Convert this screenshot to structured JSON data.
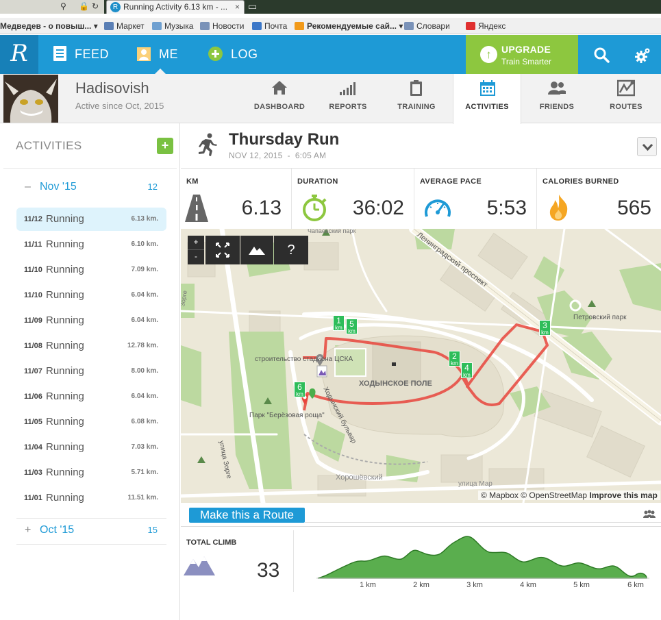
{
  "browser": {
    "tab_title": "Running Activity 6.13 km - ...",
    "favicon_letter": "R",
    "close_glyph": "×"
  },
  "bookmarks": [
    {
      "label": "Медведев - о повыш...",
      "dropdown": true,
      "icon_color": "#c8c8c8"
    },
    {
      "label": "Маркет",
      "icon_color": "#5a7fb5"
    },
    {
      "label": "Музыка",
      "icon_color": "#6fa0d0"
    },
    {
      "label": "Новости",
      "icon_color": "#7a92b8"
    },
    {
      "label": "Почта",
      "icon_color": "#3c78c8"
    },
    {
      "label": "Рекомендуемые сай...",
      "dropdown": true,
      "icon_color": "#f29a1a"
    },
    {
      "label": "Словари",
      "icon_color": "#7a92b8"
    },
    {
      "label": "Яндекс",
      "icon_color": "#e03030"
    }
  ],
  "topnav": {
    "logo": "R",
    "feed": "FEED",
    "me": "ME",
    "log": "LOG",
    "upgrade_title": "UPGRADE",
    "upgrade_sub": "Train Smarter"
  },
  "profile": {
    "name": "Hadisovish",
    "since": "Active since Oct, 2015"
  },
  "subtabs": [
    {
      "label": "DASHBOARD",
      "icon": "home-icon"
    },
    {
      "label": "REPORTS",
      "icon": "bar-chart-icon"
    },
    {
      "label": "TRAINING",
      "icon": "clipboard-icon"
    },
    {
      "label": "ACTIVITIES",
      "icon": "calendar-icon",
      "active": true
    },
    {
      "label": "FRIENDS",
      "icon": "friends-icon"
    },
    {
      "label": "ROUTES",
      "icon": "routes-icon"
    }
  ],
  "sidebar": {
    "title": "ACTIVITIES",
    "months": [
      {
        "sign": "–",
        "label": "Nov '15",
        "count": "12",
        "expanded": true,
        "activities": [
          {
            "date": "11/12",
            "name": "Running",
            "km": "6.13 km.",
            "selected": true
          },
          {
            "date": "11/11",
            "name": "Running",
            "km": "6.10 km."
          },
          {
            "date": "11/10",
            "name": "Running",
            "km": "7.09 km."
          },
          {
            "date": "11/10",
            "name": "Running",
            "km": "6.04 km."
          },
          {
            "date": "11/09",
            "name": "Running",
            "km": "6.04 km."
          },
          {
            "date": "11/08",
            "name": "Running",
            "km": "12.78 km."
          },
          {
            "date": "11/07",
            "name": "Running",
            "km": "8.00 km."
          },
          {
            "date": "11/06",
            "name": "Running",
            "km": "6.04 km."
          },
          {
            "date": "11/05",
            "name": "Running",
            "km": "6.08 km."
          },
          {
            "date": "11/04",
            "name": "Running",
            "km": "7.03 km."
          },
          {
            "date": "11/03",
            "name": "Running",
            "km": "5.71 km."
          },
          {
            "date": "11/01",
            "name": "Running",
            "km": "11.51 km."
          }
        ]
      },
      {
        "sign": "+",
        "label": "Oct '15",
        "count": "15",
        "expanded": false
      }
    ]
  },
  "activity": {
    "title": "Thursday Run",
    "date": "NOV 12, 2015",
    "sep": "-",
    "time": "6:05 AM"
  },
  "stats": [
    {
      "label": "KM",
      "value": "6.13",
      "icon": "road-icon"
    },
    {
      "label": "DURATION",
      "value": "36:02",
      "icon": "stopwatch-icon"
    },
    {
      "label": "AVERAGE PACE",
      "value": "5:53",
      "icon": "speedometer-icon"
    },
    {
      "label": "CALORIES BURNED",
      "value": "565",
      "icon": "flame-icon"
    }
  ],
  "map": {
    "controls": {
      "zoom_in": "+",
      "zoom_out": "-",
      "help": "?"
    },
    "labels": [
      "Ленинградский проспект",
      "Петровский парк",
      "строительство стадиона ЦСКА",
      "ХОДЫНСКОЕ ПОЛЕ",
      "Парк \"Берёзовая роща\"",
      "Ходынский бульвар",
      "улица Зорге",
      "Хорошёвский",
      "улица Мар",
      "Чапаевский парк",
      "Зорге"
    ],
    "km_markers": [
      {
        "num": "1",
        "unit": "km"
      },
      {
        "num": "5",
        "unit": "km"
      },
      {
        "num": "2",
        "unit": "km"
      },
      {
        "num": "4",
        "unit": "km"
      },
      {
        "num": "3",
        "unit": "km"
      },
      {
        "num": "6",
        "unit": "km"
      }
    ],
    "attribution_mapbox": "© Mapbox",
    "attribution_osm": "© OpenStreetMap",
    "attribution_improve": "Improve this map",
    "route_color": "#e8453c",
    "park_color": "#bcd9a0"
  },
  "route_button": "Make this a Route",
  "elevation": {
    "climb_label": "TOTAL CLIMB",
    "climb_value": "33",
    "x_ticks": [
      "1 km",
      "2 km",
      "3 km",
      "4 km",
      "5 km",
      "6 km"
    ],
    "fill_color": "#5aae4e",
    "stroke_color": "#2d7a25"
  }
}
